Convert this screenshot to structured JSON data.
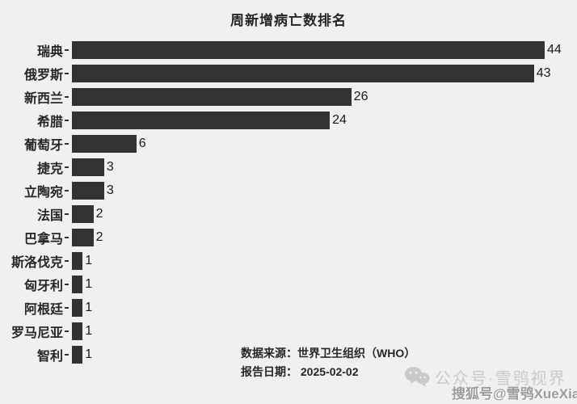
{
  "page": {
    "background_color": "#f0f0f0"
  },
  "chart_data": {
    "type": "bar",
    "orientation": "horizontal",
    "title": "周新增病亡数排名",
    "categories": [
      "瑞典",
      "俄罗斯",
      "新西兰",
      "希腊",
      "葡萄牙",
      "捷克",
      "立陶宛",
      "法国",
      "巴拿马",
      "斯洛伐克",
      "匈牙利",
      "阿根廷",
      "罗马尼亚",
      "智利"
    ],
    "values": [
      44,
      43,
      26,
      24,
      6,
      3,
      3,
      2,
      2,
      1,
      1,
      1,
      1,
      1
    ],
    "xlabel": "",
    "ylabel": "",
    "xlim": [
      0,
      46
    ],
    "grid": false,
    "legend": false,
    "value_labels_shown": true,
    "bar_color": "#333333",
    "text_color": "#262626"
  },
  "footer": {
    "source": "数据来源：世界卫生组织（WHO）",
    "report_date": "报告日期： 2025-02-02"
  },
  "watermarks": {
    "wechat_icon": "wechat-logo-icon",
    "wechat_account": "公众号·雪鸮视界",
    "sohu_account": "搜狐号@雪鸮XueXiao"
  }
}
